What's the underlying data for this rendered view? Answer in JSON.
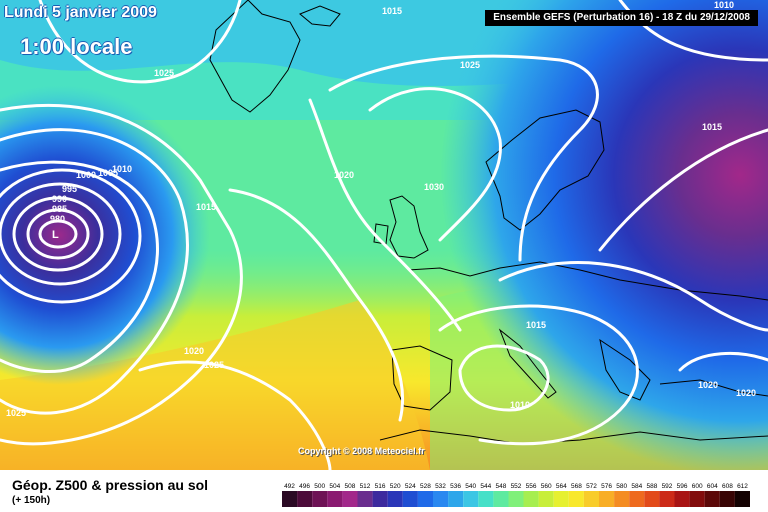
{
  "header": {
    "date": "Lundi 5 janvier 2009",
    "local_time": "1:00 locale",
    "run_info": "Ensemble GEFS (Perturbation 16)  -  18 Z du 29/12/2008"
  },
  "map": {
    "pressure_labels": [
      "1015",
      "1025",
      "1025",
      "1015",
      "1010",
      "1000",
      "1005",
      "1010",
      "995",
      "990",
      "985",
      "980",
      "1015",
      "1020",
      "1030",
      "1020",
      "1025",
      "1015",
      "1010",
      "1025",
      "1020",
      "1020"
    ],
    "low_pressure_centre": "L",
    "copyright": "Copyright © 2008 Meteociel.fr",
    "contour_color": "#ffffff",
    "land_outline_color": "#000000"
  },
  "footer": {
    "title": "Géop. Z500 & pression au sol",
    "forecast_step": "(+ 150h)"
  },
  "legend": {
    "values": [
      "492",
      "496",
      "500",
      "504",
      "508",
      "512",
      "516",
      "520",
      "524",
      "528",
      "532",
      "536",
      "540",
      "544",
      "548",
      "552",
      "556",
      "560",
      "564",
      "568",
      "572",
      "576",
      "580",
      "584",
      "588",
      "592",
      "596",
      "600",
      "604",
      "608",
      "612"
    ],
    "colors": [
      "#2b0a24",
      "#4d0b3a",
      "#6e1255",
      "#8a1a70",
      "#a2288a",
      "#6a2e8e",
      "#3d2a9e",
      "#2a36b8",
      "#1f4ed2",
      "#1f6ae8",
      "#2a88f0",
      "#2ea6ea",
      "#3cc6e4",
      "#46e0c8",
      "#5eeaa0",
      "#80f07a",
      "#a6ee50",
      "#c8ee3a",
      "#e6f030",
      "#f8e82c",
      "#f8cc2a",
      "#f8ae26",
      "#f48c22",
      "#ee6a1e",
      "#e24a1a",
      "#cc2a18",
      "#a81414",
      "#820c0c",
      "#5c0808",
      "#380404",
      "#140202"
    ]
  }
}
